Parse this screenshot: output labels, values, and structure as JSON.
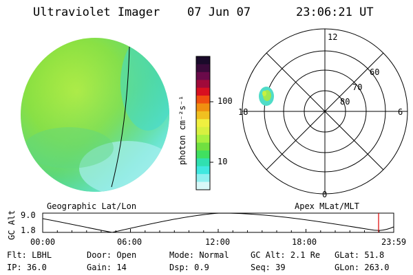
{
  "header": {
    "title": "Ultraviolet Imager",
    "date": "07 Jun 07",
    "time": "23:06:21 UT"
  },
  "colorbar": {
    "unit_label": "photon cm⁻²s⁻¹",
    "ticks": [
      "100",
      "10"
    ],
    "colors": [
      "#1a0a2a",
      "#3a0a3a",
      "#6a0a4a",
      "#a00a3a",
      "#d81020",
      "#f05010",
      "#f09010",
      "#f0c020",
      "#f0f040",
      "#d8f040",
      "#a8f040",
      "#70e040",
      "#40e060",
      "#30e0b0",
      "#40e8e0",
      "#90f0f0",
      "#d8f8f8"
    ]
  },
  "left_panel": {
    "label": "Geographic Lat/Lon"
  },
  "right_panel": {
    "label": "Apex MLat/MLT",
    "mlt_labels": {
      "top": "12",
      "right": "6",
      "bottom": "0",
      "left": "18"
    },
    "lat_labels": [
      "60",
      "70",
      "80"
    ]
  },
  "altitude_plot": {
    "ylabel": "GC Alt",
    "yticks": [
      "9.0",
      "1.8"
    ],
    "xticks": [
      "00:00",
      "06:00",
      "12:00",
      "18:00",
      "23:59"
    ],
    "marker_color": "#e00000"
  },
  "info": {
    "row1": [
      {
        "label": "Flt:",
        "value": "LBHL"
      },
      {
        "label": "Door:",
        "value": "Open"
      },
      {
        "label": "Mode:",
        "value": "Normal"
      },
      {
        "label": "GC Alt:",
        "value": "2.1 Re"
      },
      {
        "label": "GLat:",
        "value": "51.8"
      }
    ],
    "row2": [
      {
        "label": "IP:",
        "value": "36.0"
      },
      {
        "label": "Gain:",
        "value": "14"
      },
      {
        "label": "Dsp:",
        "value": "0.9"
      },
      {
        "label": "Seq:",
        "value": "39"
      },
      {
        "label": "GLon:",
        "value": "263.0"
      }
    ]
  }
}
